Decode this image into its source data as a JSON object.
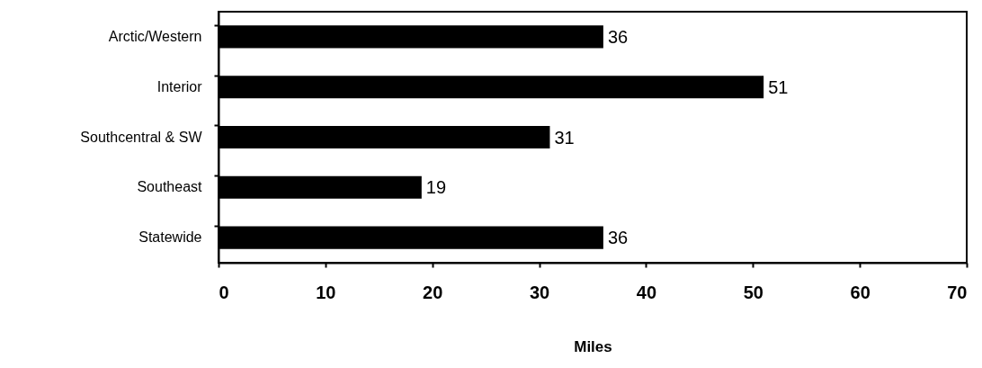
{
  "chart_data": {
    "type": "bar",
    "orientation": "horizontal",
    "categories": [
      "Arctic/Western",
      "Interior",
      "Southcentral & SW",
      "Southeast",
      "Statewide"
    ],
    "values": [
      36,
      51,
      31,
      19,
      36
    ],
    "color": "#000000",
    "xlim": [
      0,
      70
    ],
    "xticks": [
      0,
      10,
      20,
      30,
      40,
      50,
      60,
      70
    ],
    "xlabel": "Miles",
    "data_labels": true
  }
}
